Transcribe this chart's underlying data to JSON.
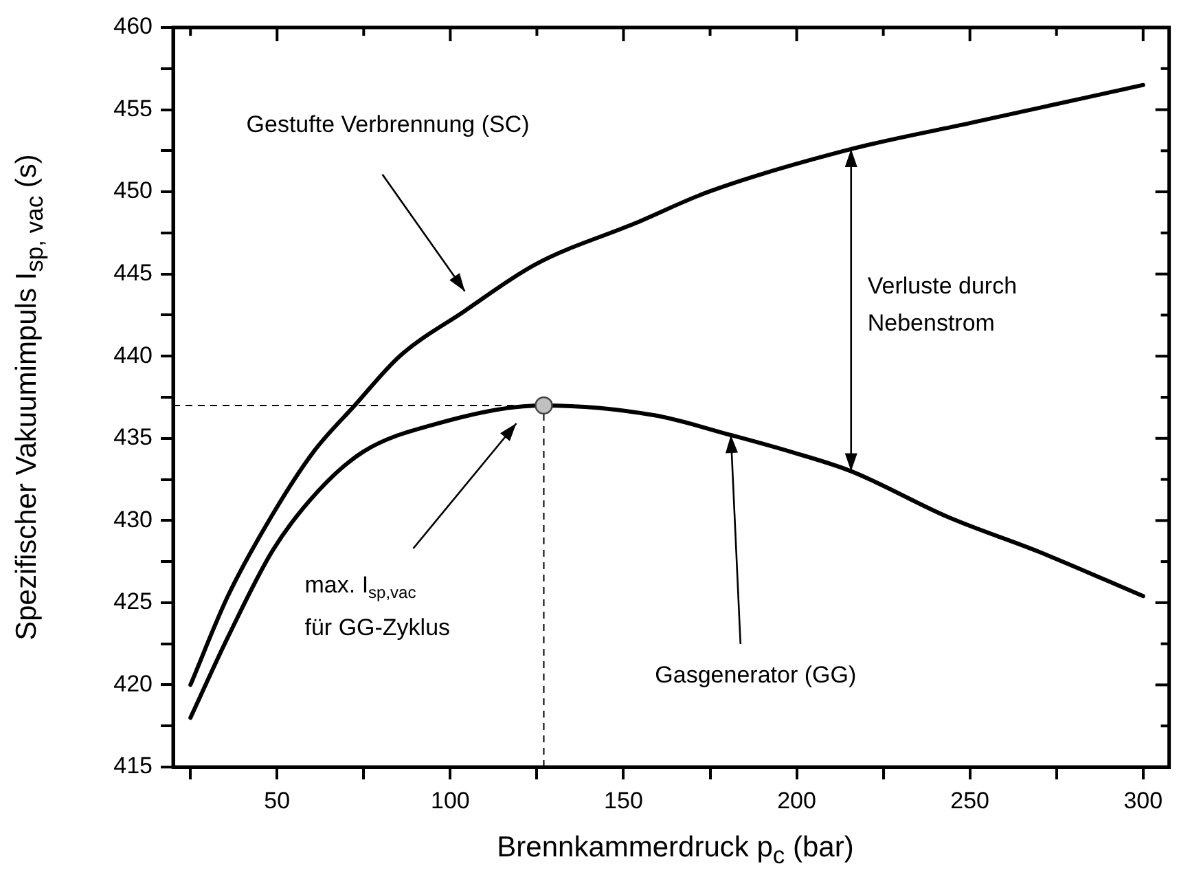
{
  "chart_data": {
    "type": "line",
    "xlabel": "Brennkammerdruck p$_{c}$ (bar)",
    "ylabel": "Spezifischer Vakuumimpuls I$_{sp, vac}$ (s)",
    "series": [
      {
        "color": "#000000",
        "x": [
          25,
          35.8,
          48.8,
          60.6,
          72.4,
          85.4,
          103.8,
          124.7,
          153.5,
          174.5,
          215.7,
          250.4,
          300
        ],
        "values": [
          420,
          425.4,
          430.4,
          434.2,
          437,
          440,
          442.7,
          445.6,
          448.1,
          450,
          452.6,
          454.2,
          456.5
        ]
      },
      {
        "color": "#000000",
        "x": [
          25,
          35.8,
          48.8,
          61.9,
          75,
          94.6,
          127,
          159,
          181,
          198,
          215.7,
          243.8,
          269.9,
          300
        ],
        "values": [
          418,
          422.9,
          428.2,
          431.8,
          434.2,
          435.8,
          437,
          436.4,
          435.2,
          434.2,
          433,
          430.2,
          428.1,
          425.4
        ]
      },
      {
        "type": "scatter",
        "marker": "circle",
        "color": "#c0c0c0",
        "x": [
          127
        ],
        "values": [
          437
        ]
      }
    ],
    "marker": "none",
    "xlim": [
      20,
      307.5
    ],
    "xticks": [
      {
        "value": 25,
        "label": null
      },
      50,
      {
        "value": 75,
        "label": null
      },
      100,
      {
        "value": 125,
        "label": null
      },
      150,
      {
        "value": 175,
        "label": null
      },
      200,
      {
        "value": 225,
        "label": null
      },
      250,
      {
        "value": 275,
        "label": null
      },
      300
    ],
    "ylim": [
      415,
      460
    ],
    "yticks": [
      415,
      {
        "value": 417.5,
        "label": null
      },
      420,
      {
        "value": 422.5,
        "label": null
      },
      425,
      {
        "value": 427.5,
        "label": null
      },
      430,
      {
        "value": 432.5,
        "label": null
      },
      435,
      {
        "value": 437.5,
        "label": null
      },
      440,
      {
        "value": 442.5,
        "label": null
      },
      445,
      {
        "value": 447.5,
        "label": null
      },
      450,
      {
        "value": 452.5,
        "label": null
      },
      455,
      {
        "value": 457.5,
        "label": null
      },
      460
    ],
    "ref_lines": [
      {
        "axis": "x",
        "value": 127,
        "line_style": "dashed"
      },
      {
        "axis": "y",
        "value": 437,
        "line_style": "dashed"
      }
    ],
    "annotations": [
      "Gestufte Verbrennung (SC)",
      "max. I$_{sp,vac}$\nfür GG-Zyklus",
      {
        "text": "Gasgenerator (GG)",
        "x": 181,
        "y": 435.2
      },
      "Verluste durch\nNebenstrom"
    ],
    "grid": false,
    "legend": false
  }
}
